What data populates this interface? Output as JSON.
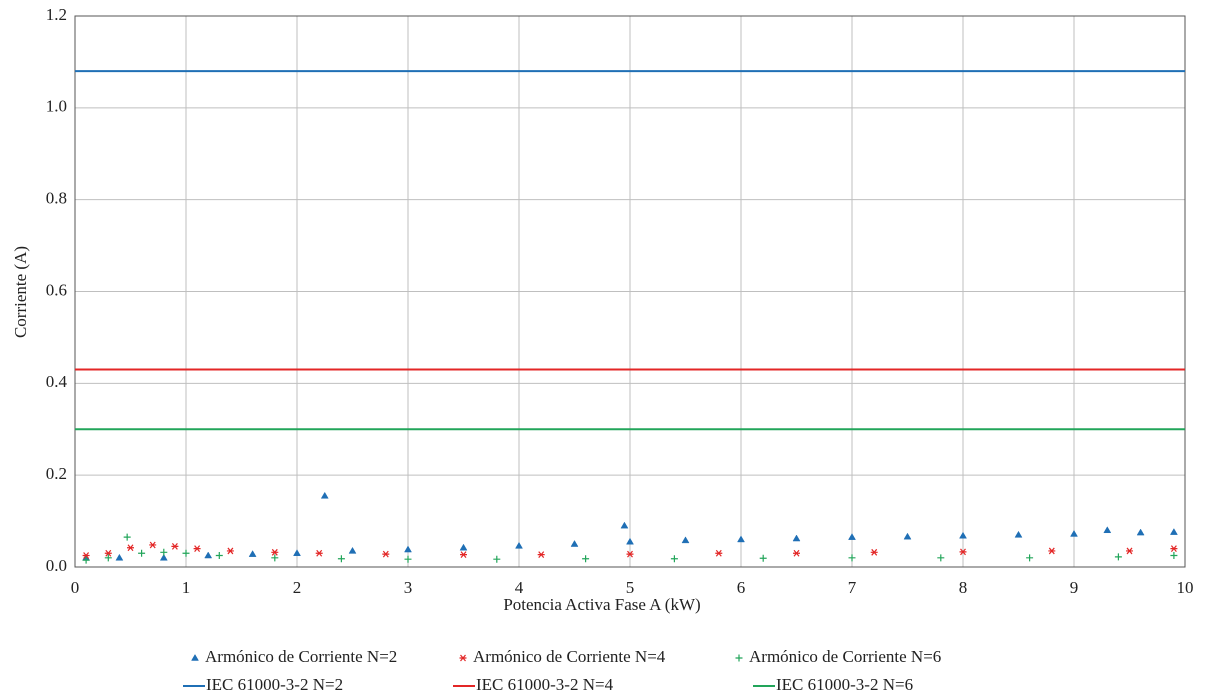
{
  "chart_data": {
    "type": "scatter",
    "xlabel": "Potencia Activa Fase A (kW)",
    "ylabel": "Corriente (A)",
    "xlim": [
      0,
      10
    ],
    "xticks": [
      0,
      1,
      2,
      3,
      4,
      5,
      6,
      7,
      8,
      9,
      10
    ],
    "ylim": [
      0,
      1.2
    ],
    "yticks": [
      {
        "value": 0,
        "label": "0.0"
      },
      0.2,
      0.4,
      0.6,
      0.8,
      {
        "value": 1,
        "label": "1.0"
      },
      1.2
    ],
    "grid": true,
    "legend": "bottom",
    "series": [
      {
        "name": "Armónico de Corriente N=2",
        "type": "scatter",
        "marker": "triangle",
        "color": "#1f6fb5",
        "x": [
          0.1,
          0.4,
          0.8,
          1.2,
          1.6,
          2.0,
          2.25,
          2.5,
          3.0,
          3.5,
          4.0,
          4.5,
          4.95,
          5.0,
          5.5,
          6.0,
          6.5,
          7.0,
          7.5,
          8.0,
          8.5,
          9.0,
          9.3,
          9.6,
          9.9
        ],
        "values": [
          0.02,
          0.02,
          0.02,
          0.025,
          0.028,
          0.03,
          0.155,
          0.035,
          0.038,
          0.042,
          0.046,
          0.05,
          0.09,
          0.055,
          0.058,
          0.06,
          0.062,
          0.065,
          0.066,
          0.068,
          0.07,
          0.072,
          0.08,
          0.075,
          0.076
        ]
      },
      {
        "name": "Armónico de Corriente N=4",
        "type": "scatter",
        "marker": "asterisk",
        "color": "#e32626",
        "x": [
          0.1,
          0.3,
          0.5,
          0.7,
          0.9,
          1.1,
          1.4,
          1.8,
          2.2,
          2.8,
          3.5,
          4.2,
          5.0,
          5.8,
          6.5,
          7.2,
          8.0,
          8.8,
          9.5,
          9.9
        ],
        "values": [
          0.025,
          0.03,
          0.042,
          0.048,
          0.045,
          0.04,
          0.035,
          0.032,
          0.03,
          0.028,
          0.027,
          0.027,
          0.028,
          0.03,
          0.03,
          0.032,
          0.033,
          0.035,
          0.035,
          0.04
        ]
      },
      {
        "name": "Armónico de Corriente N=6",
        "type": "scatter",
        "marker": "plus",
        "color": "#22a55a",
        "x": [
          0.1,
          0.3,
          0.47,
          0.6,
          0.8,
          1.0,
          1.3,
          1.8,
          2.4,
          3.0,
          3.8,
          4.6,
          5.4,
          6.2,
          7.0,
          7.8,
          8.6,
          9.4,
          9.9
        ],
        "values": [
          0.015,
          0.02,
          0.065,
          0.03,
          0.032,
          0.03,
          0.025,
          0.02,
          0.018,
          0.017,
          0.017,
          0.018,
          0.018,
          0.019,
          0.02,
          0.02,
          0.02,
          0.022,
          0.025
        ]
      },
      {
        "name": "IEC 61000-3-2 N=2",
        "type": "line",
        "color": "#1f6fb5",
        "x": [
          0,
          10
        ],
        "values": [
          1.08,
          1.08
        ]
      },
      {
        "name": "IEC 61000-3-2 N=4",
        "type": "line",
        "color": "#e32626",
        "x": [
          0,
          10
        ],
        "values": [
          0.43,
          0.43
        ]
      },
      {
        "name": "IEC 61000-3-2 N=6",
        "type": "line",
        "color": "#22a55a",
        "x": [
          0,
          10
        ],
        "values": [
          0.3,
          0.3
        ]
      }
    ]
  }
}
